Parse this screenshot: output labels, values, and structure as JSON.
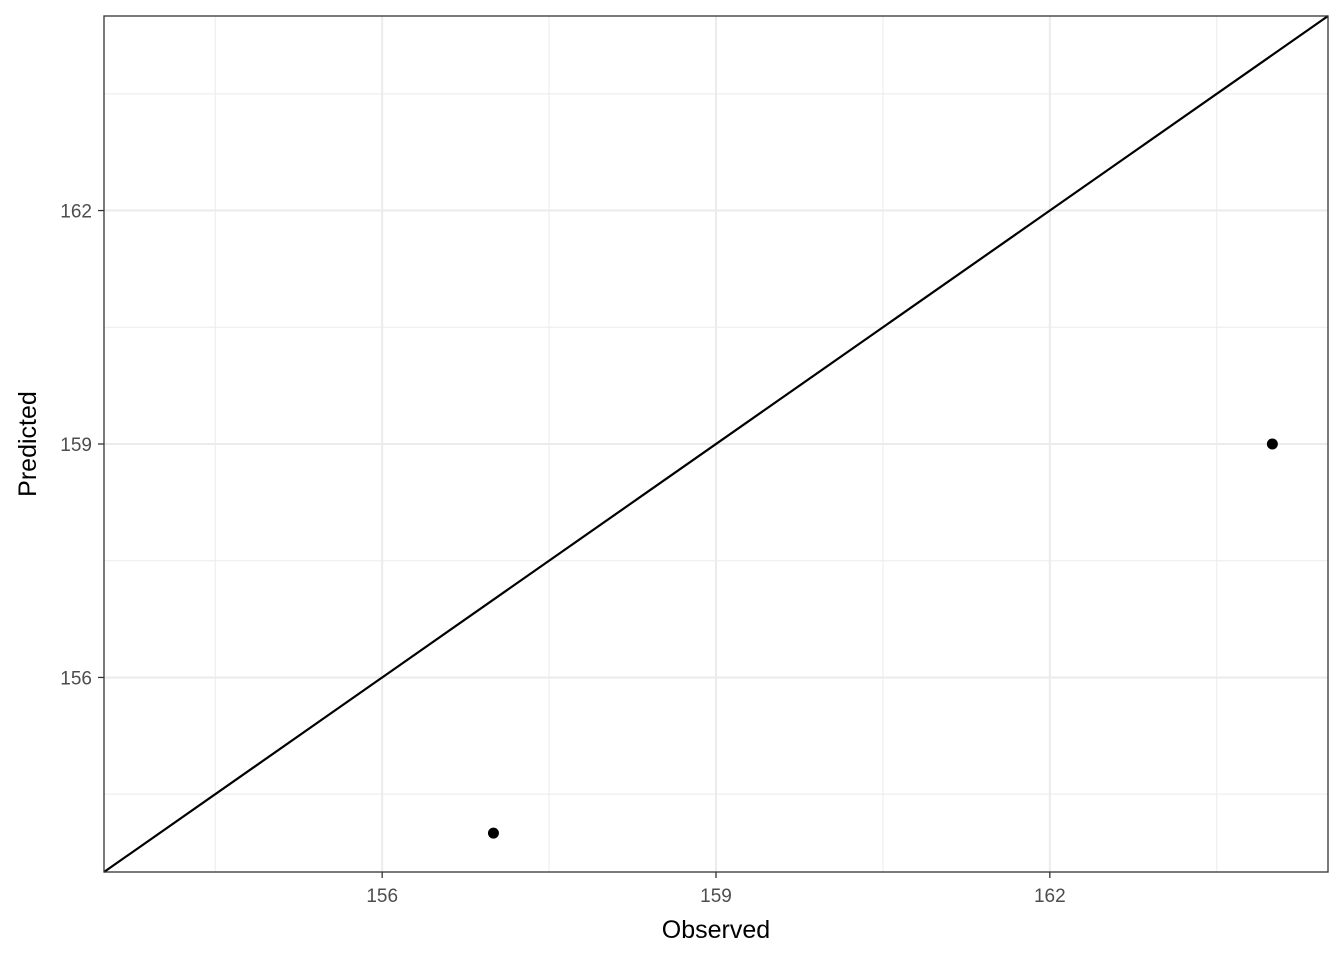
{
  "chart_data": {
    "type": "scatter",
    "title": "",
    "xlabel": "Observed",
    "ylabel": "Predicted",
    "xlim": [
      153.5,
      164.5
    ],
    "ylim": [
      153.5,
      164.5
    ],
    "x_ticks": [
      156,
      159,
      162
    ],
    "y_ticks": [
      156,
      159,
      162
    ],
    "x_tick_labels": [
      "156",
      "159",
      "162"
    ],
    "y_tick_labels": [
      "156",
      "159",
      "162"
    ],
    "grid": true,
    "reference_line": {
      "type": "identity",
      "slope": 1,
      "intercept": 0,
      "color": "#000000"
    },
    "points": [
      {
        "x": 157,
        "y": 154
      },
      {
        "x": 164,
        "y": 159
      }
    ],
    "point_color": "#000000",
    "grid_color": "#ebebeb"
  }
}
